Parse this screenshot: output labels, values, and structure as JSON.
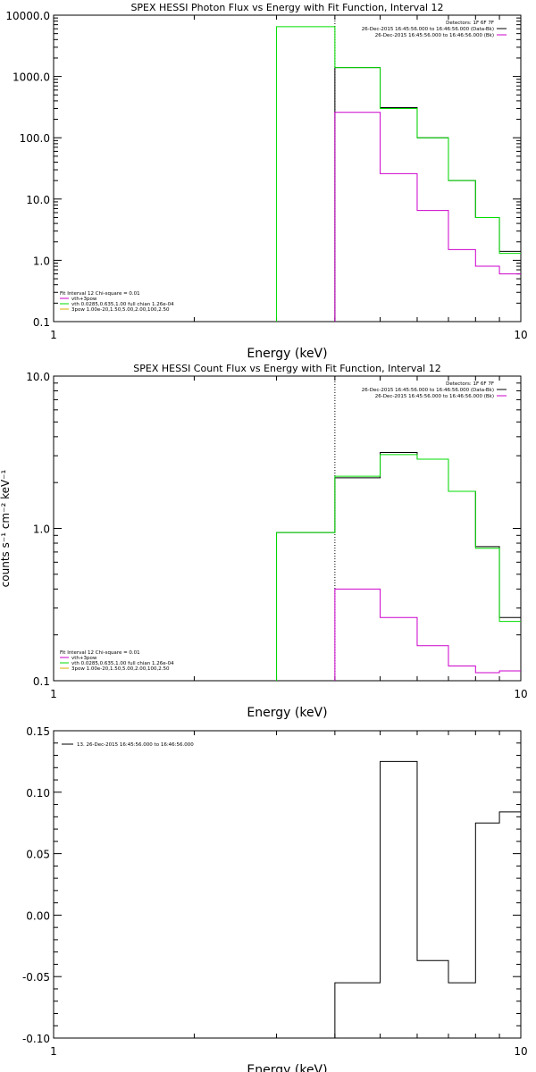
{
  "chart_data": [
    {
      "type": "line",
      "title": "SPEX HESSI Photon Flux vs Energy with Fit Function, Interval 12",
      "xlabel": "Energy (keV)",
      "ylabel": "",
      "xscale": "log",
      "yscale": "log",
      "xlim": [
        1,
        10
      ],
      "ylim": [
        0.1,
        10000
      ],
      "x_ticks": [
        "1",
        "10"
      ],
      "y_ticks": [
        "0.1",
        "1.0",
        "10.0",
        "100.0",
        "1000.0",
        "10000.0"
      ],
      "top_right_text": [
        "Detectors: 1F 6F 7F",
        "26-Dec-2015 16:45:56.000 to 16:46:56.000 (Data-Bk)",
        "26-Dec-2015 16:45:56.000 to 16:46:56.000 (Bk)"
      ],
      "legend_lines": [
        "Fit Interval 12   Chi-square = 0.01",
        "vth+3pow",
        "vth 0.0285,0.635,1.00  full chian 1.26e-04",
        "3pow 1.00e-20,1.50,5.00,2.00,100,2.50"
      ],
      "legend_colors": [
        "#000000",
        "#cc00cc",
        "#00dd00",
        "#ddaa00"
      ],
      "marker_x": 4.0,
      "series": [
        {
          "name": "Data-Bk",
          "color": "#000000",
          "edges": [
            4.0,
            5.0,
            6.0,
            7.0,
            8.0,
            9.0,
            10.0
          ],
          "values": [
            1400,
            310,
            100,
            20,
            5,
            1.4
          ]
        },
        {
          "name": "Bk",
          "color": "#cc00cc",
          "edges": [
            4.0,
            5.0,
            6.0,
            7.0,
            8.0,
            9.0,
            10.0
          ],
          "values": [
            260,
            26,
            6.5,
            1.5,
            0.8,
            0.6
          ]
        },
        {
          "name": "vth+3pow",
          "color": "#00dd00",
          "edges": [
            3.0,
            4.0,
            5.0,
            6.0,
            7.0,
            8.0,
            9.0,
            10.0
          ],
          "values": [
            6500,
            1400,
            300,
            100,
            20,
            5,
            1.3
          ]
        }
      ]
    },
    {
      "type": "line",
      "title": "SPEX HESSI Count Flux vs Energy with Fit Function, Interval 12",
      "xlabel": "Energy (keV)",
      "ylabel": "counts s⁻¹ cm⁻² keV⁻¹",
      "xscale": "log",
      "yscale": "log",
      "xlim": [
        1,
        10
      ],
      "ylim": [
        0.1,
        10
      ],
      "x_ticks": [
        "1",
        "10"
      ],
      "y_ticks": [
        "0.1",
        "1.0",
        "10.0"
      ],
      "top_right_text": [
        "Detectors: 1F 6F 7F",
        "26-Dec-2015 16:45:56.000 to 16:46:56.000 (Data-Bk)",
        "26-Dec-2015 16:45:56.000 to 16:46:56.000 (Bk)"
      ],
      "legend_lines": [
        "Fit Interval 12   Chi-square = 0.01",
        "vth+3pow",
        "vth 0.0285,0.635,1.00  full chian 1.26e-04",
        "3pow 1.00e-20,1.50,5.00,2.00,100,2.50"
      ],
      "legend_colors": [
        "#000000",
        "#cc00cc",
        "#00dd00",
        "#ddaa00"
      ],
      "marker_x": 4.0,
      "series": [
        {
          "name": "Data-Bk",
          "color": "#000000",
          "edges": [
            3.0,
            4.0,
            5.0,
            6.0,
            7.0,
            8.0,
            9.0,
            10.0
          ],
          "values": [
            0.94,
            2.15,
            3.15,
            2.85,
            1.75,
            0.76,
            0.26
          ]
        },
        {
          "name": "Bk",
          "color": "#cc00cc",
          "edges": [
            4.0,
            5.0,
            6.0,
            7.0,
            8.0,
            9.0,
            10.0
          ],
          "values": [
            0.4,
            0.26,
            0.17,
            0.125,
            0.113,
            0.116
          ]
        },
        {
          "name": "vth+3pow",
          "color": "#00dd00",
          "edges": [
            3.0,
            4.0,
            5.0,
            6.0,
            7.0,
            8.0,
            9.0,
            10.0
          ],
          "values": [
            0.94,
            2.2,
            3.05,
            2.85,
            1.75,
            0.74,
            0.245
          ]
        }
      ]
    },
    {
      "type": "line",
      "title": "",
      "xlabel": "Energy (keV)",
      "ylabel": "",
      "xscale": "log",
      "yscale": "linear",
      "xlim": [
        1,
        10
      ],
      "ylim": [
        -0.1,
        0.15
      ],
      "x_ticks": [
        "1",
        "10"
      ],
      "y_ticks": [
        "-0.10",
        "-0.05",
        "0.00",
        "0.05",
        "0.10",
        "0.15"
      ],
      "legend_lines": [
        "13. 26-Dec-2015 16:45:56.000 to 16:46:56.000"
      ],
      "legend_colors": [
        "#000000"
      ],
      "series": [
        {
          "name": "13. 26-Dec-2015 16:45:56.000 to 16:46:56.000",
          "color": "#000000",
          "edges": [
            4.0,
            5.0,
            6.0,
            7.0,
            8.0,
            9.0,
            10.0
          ],
          "values": [
            -0.055,
            0.125,
            -0.037,
            -0.055,
            0.075,
            0.084
          ]
        }
      ]
    }
  ]
}
